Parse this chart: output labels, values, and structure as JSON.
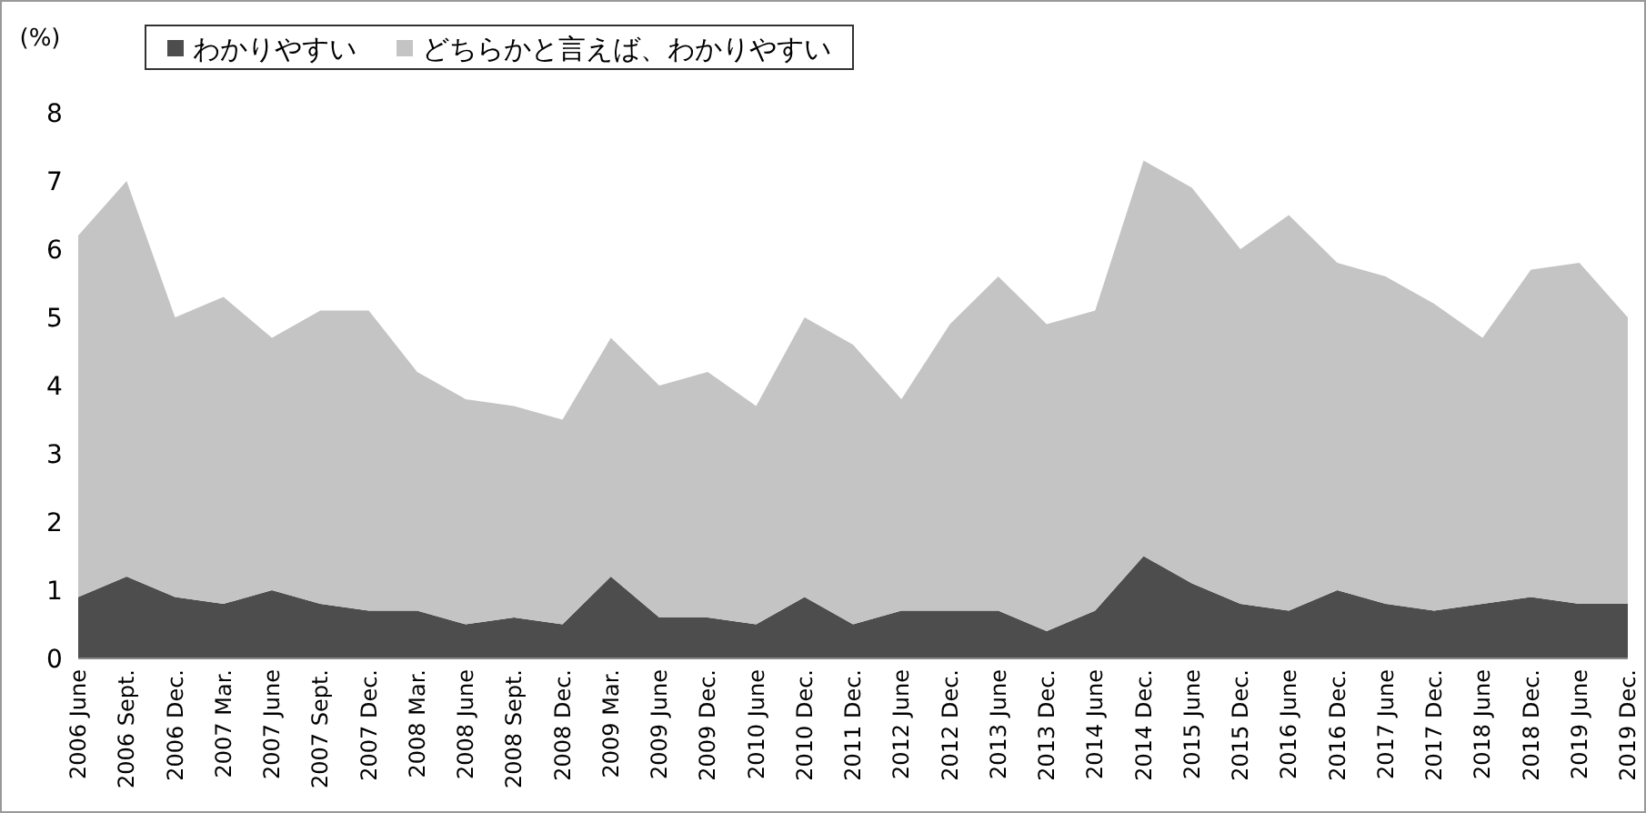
{
  "chart_data": {
    "type": "area",
    "stacked": true,
    "ylabel": "(%)",
    "ylim": [
      0,
      8
    ],
    "yticks": [
      0,
      1,
      2,
      3,
      4,
      5,
      6,
      7,
      8
    ],
    "grid": false,
    "legend": "top",
    "categories": [
      "2006 June",
      "2006 Sept.",
      "2006 Dec.",
      "2007 Mar.",
      "2007 June",
      "2007 Sept.",
      "2007 Dec.",
      "2008 Mar.",
      "2008 June",
      "2008 Sept.",
      "2008 Dec.",
      "2009 Mar.",
      "2009 June",
      "2009 Dec.",
      "2010 June",
      "2010 Dec.",
      "2011 Dec.",
      "2012 June",
      "2012 Dec.",
      "2013 June",
      "2013 Dec.",
      "2014 June",
      "2014 Dec.",
      "2015 June",
      "2015 Dec.",
      "2016 June",
      "2016 Dec.",
      "2017 June",
      "2017 Dec.",
      "2018 June",
      "2018 Dec.",
      "2019 June",
      "2019 Dec."
    ],
    "series": [
      {
        "name": "わかりやすい",
        "color": "#4d4d4d",
        "values": [
          0.9,
          1.2,
          0.9,
          0.8,
          1.0,
          0.8,
          0.7,
          0.7,
          0.5,
          0.6,
          0.5,
          1.2,
          0.6,
          0.6,
          0.5,
          0.9,
          0.5,
          0.7,
          0.7,
          0.7,
          0.4,
          0.7,
          1.5,
          1.1,
          0.8,
          0.7,
          1.0,
          0.8,
          0.7,
          0.8,
          0.9,
          0.8,
          0.8
        ]
      },
      {
        "name": "どちらかと言えば、わかりやすい",
        "color": "#c4c4c4",
        "values": [
          5.3,
          5.8,
          4.1,
          4.5,
          3.7,
          4.3,
          4.4,
          3.5,
          3.3,
          3.1,
          3.0,
          3.5,
          3.4,
          3.6,
          3.2,
          4.1,
          4.1,
          3.1,
          4.2,
          4.9,
          4.5,
          4.4,
          5.8,
          5.8,
          5.2,
          5.8,
          4.8,
          4.8,
          4.5,
          3.9,
          4.8,
          5.0,
          4.2
        ]
      }
    ]
  }
}
